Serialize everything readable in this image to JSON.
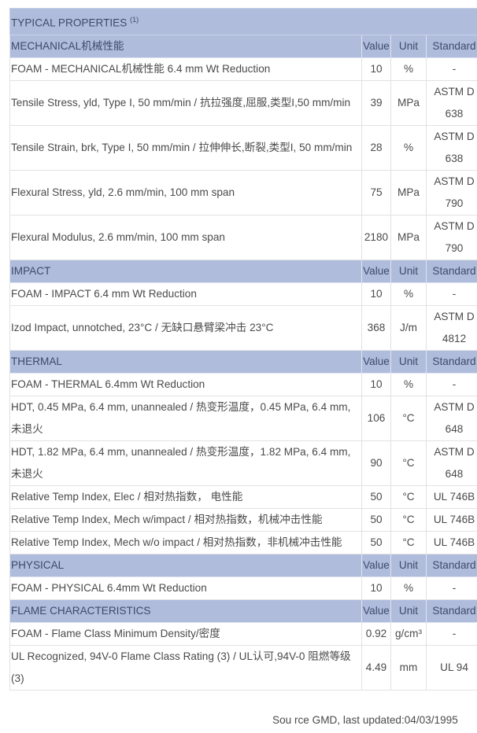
{
  "title": "TYPICAL PROPERTIES",
  "title_sup": "(1)",
  "header_color": "#b0bcdc",
  "col_headers": {
    "value": "Value",
    "unit": "Unit",
    "standard": "Standard"
  },
  "sections": [
    {
      "name": "MECHANICAL机械性能",
      "rows": [
        {
          "desc": "FOAM - MECHANICAL机械性能 6.4 mm Wt Reduction",
          "value": "10",
          "unit": "%",
          "standard": "-"
        },
        {
          "desc": "Tensile Stress, yld, Type I, 50 mm/min / 抗拉强度,屈服,类型I,50 mm/min",
          "value": "39",
          "unit": "MPa",
          "standard": "ASTM D 638"
        },
        {
          "desc": "Tensile Strain, brk, Type I, 50 mm/min / 拉伸伸长,断裂,类型I, 50 mm/min",
          "value": "28",
          "unit": "%",
          "standard": "ASTM D 638"
        },
        {
          "desc": "Flexural Stress, yld, 2.6 mm/min, 100 mm span",
          "value": "75",
          "unit": "MPa",
          "standard": "ASTM D 790"
        },
        {
          "desc": "Flexural Modulus, 2.6 mm/min, 100 mm span",
          "value": "2180",
          "unit": "MPa",
          "standard": "ASTM D 790"
        }
      ]
    },
    {
      "name": "IMPACT",
      "rows": [
        {
          "desc": "FOAM - IMPACT 6.4 mm Wt Reduction",
          "value": "10",
          "unit": "%",
          "standard": "-"
        },
        {
          "desc": "Izod Impact, unnotched, 23°C / 无缺口悬臂梁冲击 23°C",
          "value": "368",
          "unit": "J/m",
          "standard": "ASTM D 4812"
        }
      ]
    },
    {
      "name": "THERMAL",
      "rows": [
        {
          "desc": "FOAM - THERMAL 6.4mm Wt Reduction",
          "value": "10",
          "unit": "%",
          "standard": "-"
        },
        {
          "desc": "HDT, 0.45 MPa, 6.4 mm, unannealed / 热变形温度，0.45 MPa, 6.4 mm, 未退火",
          "value": "106",
          "unit": "°C",
          "standard": "ASTM D 648"
        },
        {
          "desc": "HDT, 1.82 MPa, 6.4 mm, unannealed / 热变形温度，1.82 MPa, 6.4 mm, 未退火",
          "value": "90",
          "unit": "°C",
          "standard": "ASTM D 648"
        },
        {
          "desc": "Relative Temp Index, Elec / 相对热指数， 电性能",
          "value": "50",
          "unit": "°C",
          "standard": "UL 746B"
        },
        {
          "desc": "Relative Temp Index, Mech w/impact / 相对热指数，机械冲击性能",
          "value": "50",
          "unit": "°C",
          "standard": "UL 746B"
        },
        {
          "desc": "Relative Temp Index, Mech w/o impact / 相对热指数，非机械冲击性能",
          "value": "50",
          "unit": "°C",
          "standard": "UL 746B"
        }
      ]
    },
    {
      "name": "PHYSICAL",
      "rows": [
        {
          "desc": "FOAM - PHYSICAL 6.4mm Wt Reduction",
          "value": "10",
          "unit": "%",
          "standard": "-"
        }
      ]
    },
    {
      "name": "FLAME CHARACTERISTICS",
      "rows": [
        {
          "desc": "FOAM - Flame Class Minimum Density/密度",
          "value": "0.92",
          "unit": "g/cm³",
          "standard": "-"
        },
        {
          "desc": "UL Recognized, 94V-0 Flame Class Rating (3) / UL认可,94V-0 阻燃等级(3)",
          "value": "4.49",
          "unit": "mm",
          "standard": "UL 94"
        }
      ]
    }
  ],
  "source": "Sou rce GMD, last updated:04/03/1995"
}
